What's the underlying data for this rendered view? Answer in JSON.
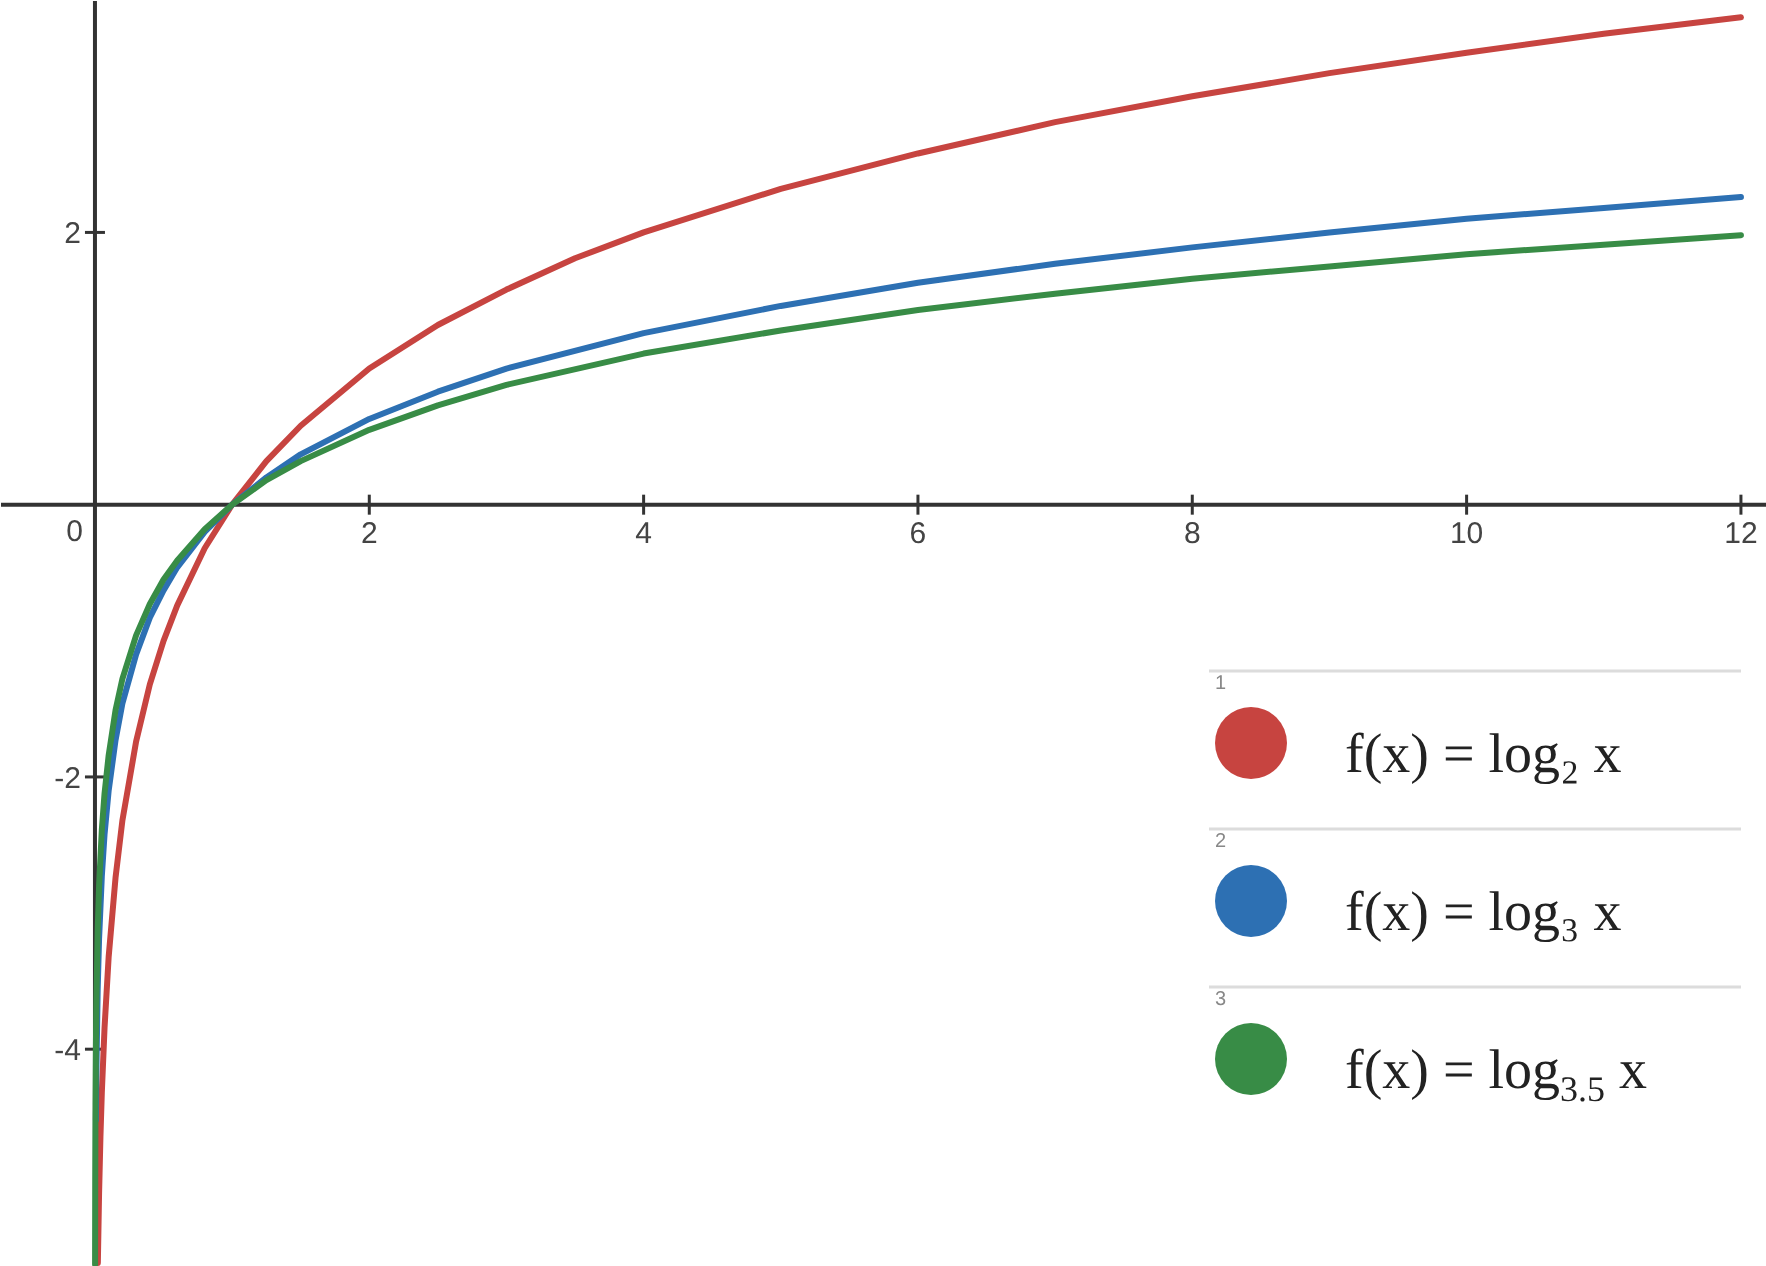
{
  "chart_data": {
    "type": "line",
    "xlim": [
      -0.685,
      12.19
    ],
    "ylim": [
      -5.6,
      3.7
    ],
    "xticks": [
      0,
      2,
      4,
      6,
      8,
      10,
      12
    ],
    "yticks": [
      -4,
      -2,
      2
    ],
    "legend": "bottom right",
    "annotations": [
      "1",
      "2",
      "3"
    ],
    "series": [
      {
        "name": "f(x) = log₂ x",
        "color": "#c74440",
        "x": [
          0.021,
          0.03,
          0.04,
          0.05,
          0.07,
          0.1,
          0.15,
          0.2,
          0.3,
          0.4,
          0.5,
          0.6,
          0.8,
          1,
          1.25,
          1.5,
          2,
          2.5,
          3,
          3.5,
          4,
          5,
          6,
          7,
          8,
          9,
          10,
          11,
          12
        ],
        "values": [
          -5.57,
          -5.06,
          -4.64,
          -4.32,
          -3.84,
          -3.32,
          -2.74,
          -2.32,
          -1.74,
          -1.32,
          -1,
          -0.74,
          -0.32,
          0,
          0.32,
          0.58,
          1,
          1.32,
          1.58,
          1.81,
          2,
          2.32,
          2.58,
          2.81,
          3,
          3.17,
          3.32,
          3.46,
          3.58
        ]
      },
      {
        "name": "f(x) = log₃ x",
        "color": "#2d70b3",
        "x": [
          0.007,
          0.01,
          0.02,
          0.03,
          0.05,
          0.07,
          0.1,
          0.15,
          0.2,
          0.3,
          0.4,
          0.5,
          0.6,
          0.8,
          1,
          1.25,
          1.5,
          2,
          2.5,
          3,
          4,
          5,
          6,
          7,
          8,
          9,
          10,
          11,
          12
        ],
        "values": [
          -4.52,
          -4.19,
          -3.56,
          -3.19,
          -2.73,
          -2.42,
          -2.1,
          -1.73,
          -1.46,
          -1.1,
          -0.83,
          -0.63,
          -0.46,
          -0.2,
          0,
          0.2,
          0.37,
          0.63,
          0.83,
          1,
          1.26,
          1.46,
          1.63,
          1.77,
          1.89,
          2,
          2.1,
          2.18,
          2.26
        ]
      },
      {
        "name": "f(x) = log$_{3.5}$ x",
        "color": "#388c46",
        "x": [
          0.00092,
          0.002,
          0.004,
          0.007,
          0.01,
          0.02,
          0.03,
          0.05,
          0.07,
          0.1,
          0.15,
          0.2,
          0.3,
          0.4,
          0.5,
          0.6,
          0.8,
          1,
          1.25,
          1.5,
          2,
          2.5,
          3,
          4,
          5,
          6,
          7,
          8,
          9,
          10,
          11,
          12
        ],
        "values": [
          -5.58,
          -4.96,
          -4.41,
          -3.96,
          -3.68,
          -3.12,
          -2.8,
          -2.39,
          -2.12,
          -1.84,
          -1.51,
          -1.28,
          -0.96,
          -0.73,
          -0.55,
          -0.41,
          -0.18,
          0,
          0.18,
          0.32,
          0.55,
          0.73,
          0.88,
          1.11,
          1.28,
          1.43,
          1.55,
          1.66,
          1.75,
          1.84,
          1.91,
          1.98
        ]
      }
    ]
  }
}
